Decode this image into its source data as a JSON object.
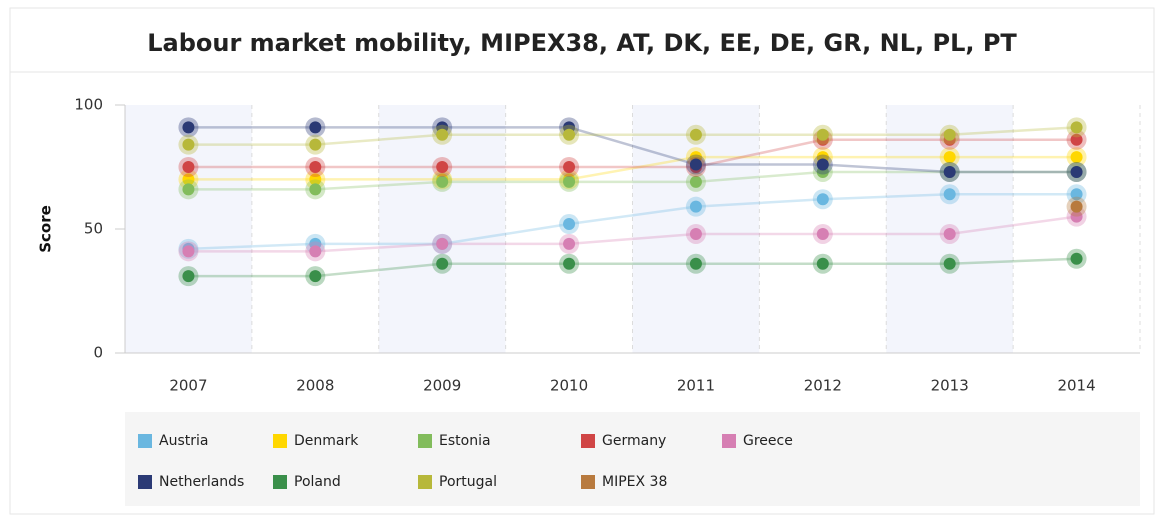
{
  "chart_data": {
    "type": "line",
    "title": "Labour market mobility, MIPEX38, AT, DK, EE, DE, GR, NL, PL, PT",
    "y_label": "Score",
    "categories": [
      "2007",
      "2008",
      "2009",
      "2010",
      "2011",
      "2012",
      "2013",
      "2014"
    ],
    "ylim": [
      0,
      100
    ],
    "yticks": [
      0,
      50,
      100
    ],
    "series": [
      {
        "name": "Austria",
        "color": "#6ab7e0",
        "values": [
          42,
          44,
          44,
          52,
          59,
          62,
          64,
          64
        ]
      },
      {
        "name": "Denmark",
        "color": "#ffd700",
        "values": [
          70,
          70,
          70,
          70,
          79,
          79,
          79,
          79
        ]
      },
      {
        "name": "Estonia",
        "color": "#82bc5c",
        "values": [
          66,
          66,
          69,
          69,
          69,
          73,
          73,
          73
        ]
      },
      {
        "name": "Germany",
        "color": "#d04545",
        "values": [
          75,
          75,
          75,
          75,
          75,
          86,
          86,
          86
        ]
      },
      {
        "name": "Greece",
        "color": "#d67fb3",
        "values": [
          41,
          41,
          44,
          44,
          48,
          48,
          48,
          55
        ]
      },
      {
        "name": "Netherlands",
        "color": "#2b3a75",
        "values": [
          91,
          91,
          91,
          91,
          76,
          76,
          73,
          73
        ]
      },
      {
        "name": "Poland",
        "color": "#3a8f4a",
        "values": [
          31,
          31,
          36,
          36,
          36,
          36,
          36,
          38
        ]
      },
      {
        "name": "Portugal",
        "color": "#b7b83a",
        "values": [
          84,
          84,
          88,
          88,
          88,
          88,
          88,
          91
        ]
      },
      {
        "name": "MIPEX 38",
        "color": "#b87a3e",
        "values": [
          null,
          null,
          null,
          null,
          null,
          null,
          null,
          59
        ]
      }
    ]
  }
}
